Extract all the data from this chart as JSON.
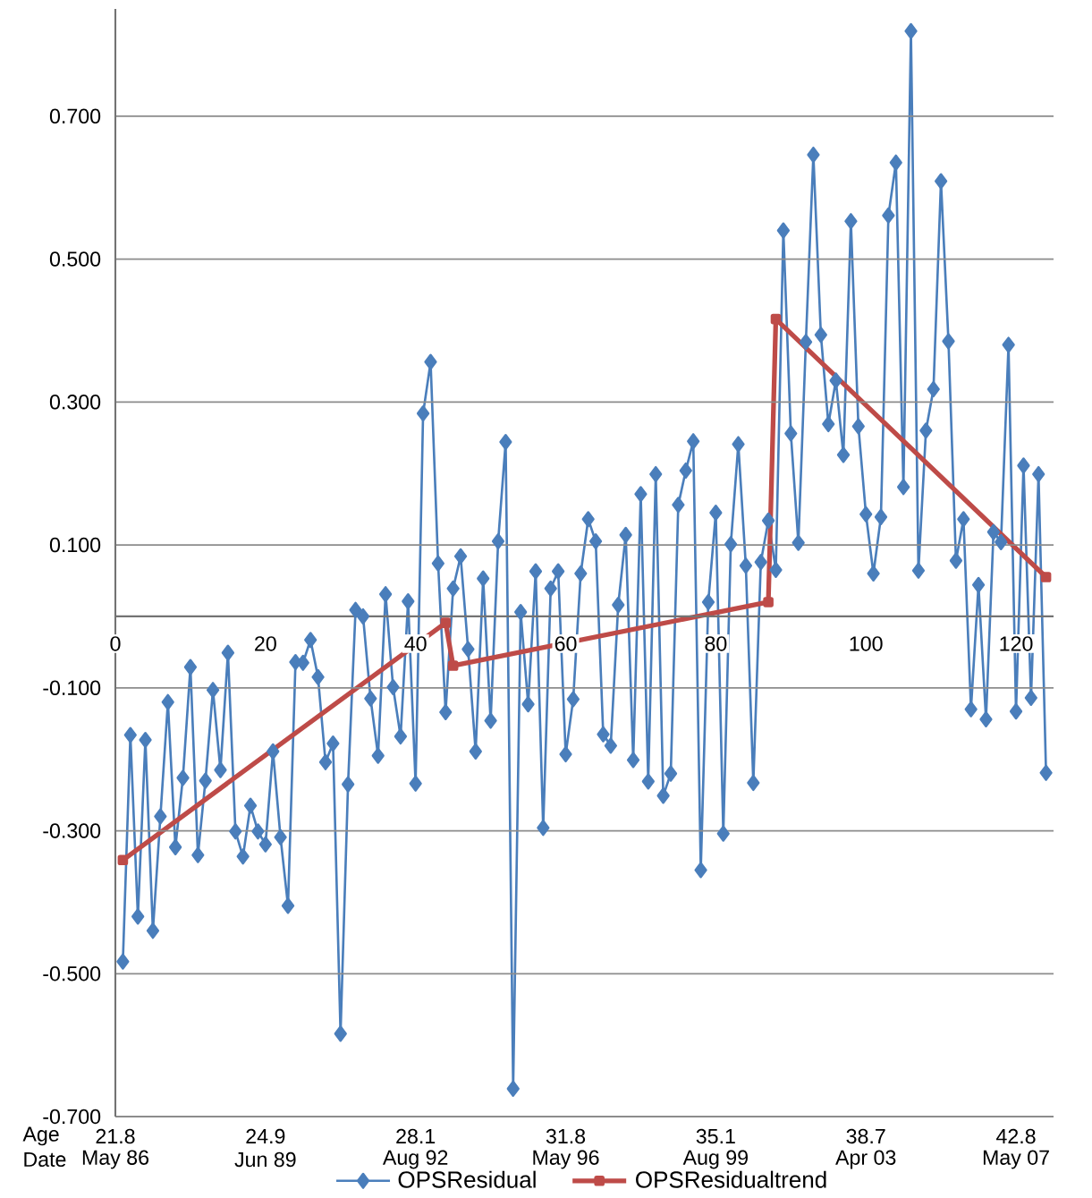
{
  "chart_data": {
    "type": "line",
    "x": [
      1,
      2,
      3,
      4,
      5,
      6,
      7,
      8,
      9,
      10,
      11,
      12,
      13,
      14,
      15,
      16,
      17,
      18,
      19,
      20,
      21,
      22,
      23,
      24,
      25,
      26,
      27,
      28,
      29,
      30,
      31,
      32,
      33,
      34,
      35,
      36,
      37,
      38,
      39,
      40,
      41,
      42,
      43,
      44,
      45,
      46,
      47,
      48,
      49,
      50,
      51,
      52,
      53,
      54,
      55,
      56,
      57,
      58,
      59,
      60,
      61,
      62,
      63,
      64,
      65,
      66,
      67,
      68,
      69,
      70,
      71,
      72,
      73,
      74,
      75,
      76,
      77,
      78,
      79,
      80,
      81,
      82,
      83,
      84,
      85,
      86,
      87,
      88,
      89,
      90,
      91,
      92,
      93,
      94,
      95,
      96,
      97,
      98,
      99,
      100,
      101,
      102,
      103,
      104,
      105,
      106,
      107,
      108,
      109,
      110,
      111,
      112,
      113,
      114,
      115,
      116,
      117,
      118,
      119,
      120,
      121,
      122,
      123,
      124
    ],
    "series": [
      {
        "name": "OPSResidual",
        "color": "#4a7ebb",
        "marker": "diamond",
        "values": [
          -0.483,
          -0.166,
          -0.42,
          -0.173,
          -0.44,
          -0.28,
          -0.12,
          -0.323,
          -0.226,
          -0.071,
          -0.334,
          -0.23,
          -0.103,
          -0.215,
          -0.051,
          -0.301,
          -0.336,
          -0.265,
          -0.301,
          -0.319,
          -0.189,
          -0.309,
          -0.405,
          -0.064,
          -0.065,
          -0.033,
          -0.085,
          -0.204,
          -0.178,
          -0.584,
          -0.235,
          0.009,
          0.0,
          -0.115,
          -0.195,
          0.031,
          -0.099,
          -0.168,
          0.021,
          -0.234,
          0.284,
          0.356,
          0.074,
          -0.134,
          0.039,
          0.084,
          -0.046,
          -0.189,
          0.053,
          -0.146,
          0.105,
          0.244,
          -0.661,
          0.006,
          -0.123,
          0.063,
          -0.296,
          0.039,
          0.063,
          -0.193,
          -0.116,
          0.06,
          0.136,
          0.105,
          -0.165,
          -0.181,
          0.016,
          0.114,
          -0.201,
          0.171,
          -0.231,
          0.199,
          -0.251,
          -0.22,
          0.156,
          0.204,
          0.245,
          -0.355,
          0.02,
          0.145,
          -0.304,
          0.101,
          0.241,
          0.071,
          -0.233,
          0.076,
          0.134,
          0.065,
          0.54,
          0.256,
          0.103,
          0.384,
          0.646,
          0.394,
          0.269,
          0.33,
          0.226,
          0.553,
          0.266,
          0.143,
          0.06,
          0.139,
          0.561,
          0.635,
          0.181,
          0.819,
          0.064,
          0.26,
          0.318,
          0.609,
          0.385,
          0.078,
          0.136,
          -0.13,
          0.044,
          -0.144,
          0.118,
          0.104,
          0.38,
          -0.133,
          0.211,
          -0.114,
          0.199,
          -0.219
        ]
      },
      {
        "name": "OPSResidualtrend",
        "color": "#be4b48",
        "marker": "square",
        "x": [
          1,
          44,
          45,
          87,
          88,
          124
        ],
        "values": [
          -0.341,
          -0.009,
          -0.069,
          0.02,
          0.416,
          0.055
        ]
      }
    ],
    "xlim": [
      0,
      125
    ],
    "xticks": [
      0,
      20,
      40,
      60,
      80,
      100,
      120
    ],
    "ylim": [
      -0.7,
      0.85
    ],
    "yticks": [
      {
        "value": -0.7,
        "label": "-0.700"
      },
      {
        "value": -0.5,
        "label": "-0.500"
      },
      {
        "value": -0.3,
        "label": "-0.300"
      },
      {
        "value": -0.1,
        "label": "-0.100"
      },
      {
        "value": 0.1,
        "label": "0.100"
      },
      {
        "value": 0.3,
        "label": "0.300"
      },
      {
        "value": 0.5,
        "label": "0.500"
      },
      {
        "value": 0.7,
        "label": "0.700"
      }
    ],
    "grid": "y",
    "legend": "bottom",
    "annotations": [
      "Age",
      "Date",
      "21.8",
      "May 86",
      "24.9",
      "Jun 89",
      "28.1",
      "Aug 92",
      "31.8",
      "May 96",
      "35.1",
      "Aug 99",
      "38.7",
      "Apr 03",
      "42.8",
      "May 07"
    ]
  }
}
